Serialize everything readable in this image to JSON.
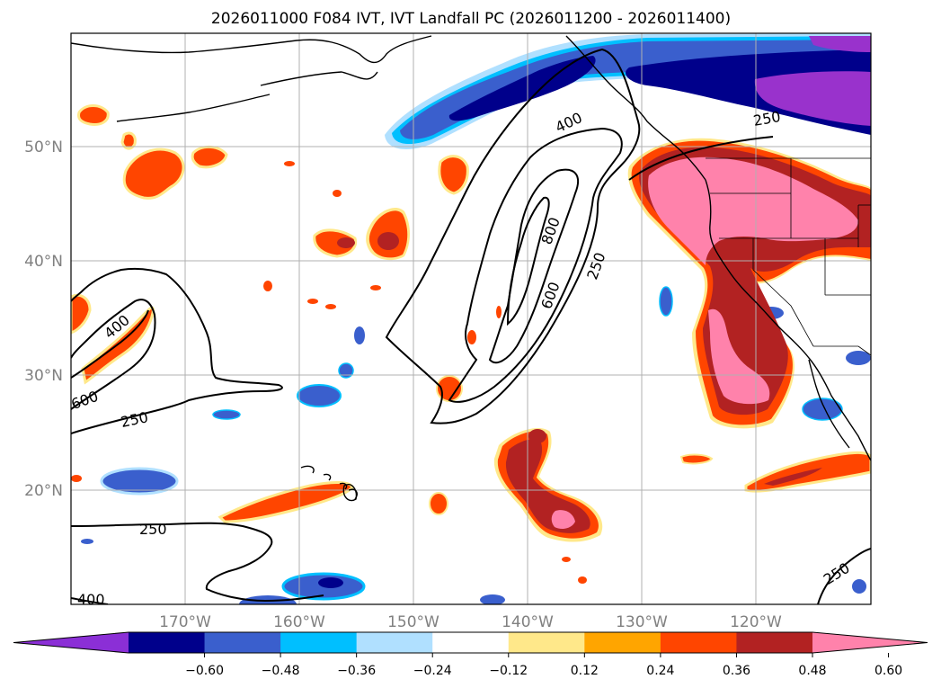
{
  "title": "2026011000 F084 IVT, IVT Landfall PC (2026011200 - 2026011400)",
  "map": {
    "lat_labels": [
      "50°N",
      "40°N",
      "30°N",
      "20°N"
    ],
    "lon_labels": [
      "170°W",
      "160°W",
      "150°W",
      "140°W",
      "130°W",
      "120°W"
    ],
    "contour_labels": [
      "400",
      "800",
      "600",
      "250",
      "400",
      "600",
      "250",
      "250",
      "400",
      "250",
      "250"
    ]
  },
  "colorbar": {
    "ticks": [
      "−0.60",
      "−0.48",
      "−0.36",
      "−0.24",
      "−0.12",
      "0.12",
      "0.24",
      "0.36",
      "0.48",
      "0.60"
    ],
    "colors": [
      "#8b2fd6",
      "#00008b",
      "#3a5fcd",
      "#00bfff",
      "#b0e0ff",
      "#ffffff",
      "#ffe88a",
      "#ffa500",
      "#ff4500",
      "#b22222",
      "#ff82ab"
    ]
  },
  "colors": {
    "purple": "#9932cc",
    "navy": "#00008b",
    "royal_blue": "#3a5fcd",
    "sky_blue": "#00bfff",
    "light_blue": "#b0e0ff",
    "pale_yellow": "#ffe88a",
    "orange": "#ffa500",
    "orange_red": "#ff4500",
    "firebrick": "#b22222",
    "pink": "#ff82ab",
    "contour": "#000000",
    "grid": "#b0b0b0",
    "label_gray": "#808080"
  }
}
